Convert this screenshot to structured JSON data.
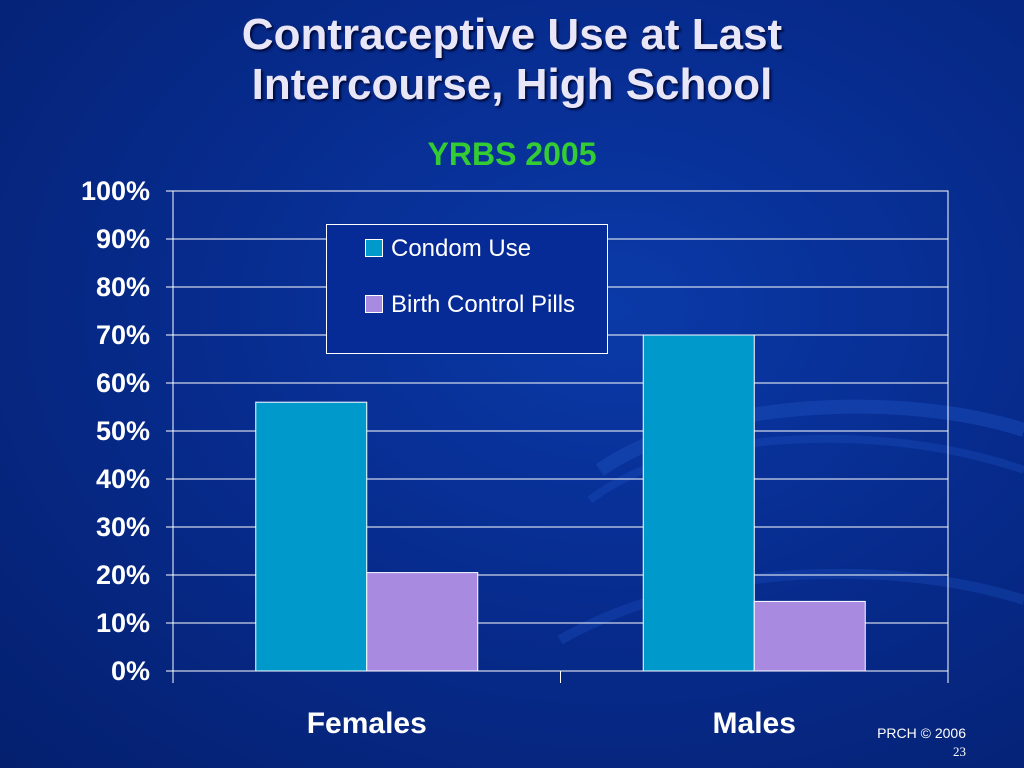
{
  "slide": {
    "title_line1": "Contraceptive Use at Last",
    "title_line2": "Intercourse, High School",
    "subtitle": "YRBS 2005",
    "footer": "PRCH © 2006",
    "page_number": "23"
  },
  "colors": {
    "condom": "#0099cc",
    "pill": "#a88ae0",
    "title": "#e8e6f7",
    "subtitle": "#33cc33"
  },
  "chart_data": {
    "type": "bar",
    "title": "Contraceptive Use at Last Intercourse, High School",
    "subtitle": "YRBS 2005",
    "categories": [
      "Females",
      "Males"
    ],
    "series": [
      {
        "name": "Condom Use",
        "values": [
          56,
          70
        ]
      },
      {
        "name": "Birth Control Pills",
        "values": [
          20.5,
          14.5
        ]
      }
    ],
    "xlabel": "",
    "ylabel": "",
    "ylim": [
      0,
      100
    ],
    "yticks": [
      "0%",
      "10%",
      "20%",
      "30%",
      "40%",
      "50%",
      "60%",
      "70%",
      "80%",
      "90%",
      "100%"
    ],
    "grid": true,
    "legend_position": "top-center"
  }
}
